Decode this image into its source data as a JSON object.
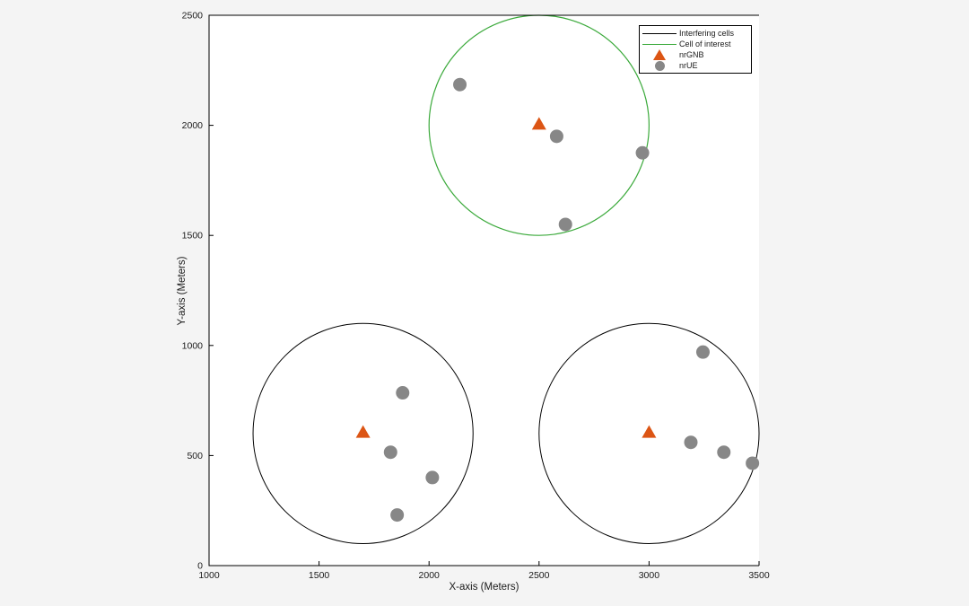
{
  "window": {
    "background_color": "#f4f4f4"
  },
  "chart_data": {
    "type": "scatter",
    "title": "",
    "xlabel": "X-axis (Meters)",
    "ylabel": "Y-axis (Meters)",
    "xlim": [
      1000,
      3500
    ],
    "ylim": [
      0,
      2500
    ],
    "xticks": [
      1000,
      1500,
      2000,
      2500,
      3000,
      3500
    ],
    "yticks": [
      0,
      500,
      1000,
      1500,
      2000,
      2500
    ],
    "grid": false,
    "plot_background": "#ffffff",
    "axis_color": "#000000",
    "tick_label_color": "#1a1a1a",
    "cells": [
      {
        "kind": "interfering",
        "center_x": 1700,
        "center_y": 600,
        "radius": 500,
        "color": "#000000",
        "line_width": 1
      },
      {
        "kind": "interfering",
        "center_x": 3000,
        "center_y": 600,
        "radius": 500,
        "color": "#000000",
        "line_width": 1
      },
      {
        "kind": "cell-of-interest",
        "center_x": 2500,
        "center_y": 2000,
        "radius": 500,
        "color": "#3caa3c",
        "line_width": 1.2
      }
    ],
    "series": [
      {
        "name": "nrGNB",
        "marker": "triangle",
        "color": "#dc5514",
        "points": [
          [
            1700,
            605
          ],
          [
            3000,
            605
          ],
          [
            2500,
            2005
          ]
        ]
      },
      {
        "name": "nrUE",
        "marker": "circle",
        "color": "#878787",
        "points": [
          [
            2140,
            2185
          ],
          [
            2580,
            1950
          ],
          [
            2970,
            1875
          ],
          [
            2620,
            1550
          ],
          [
            1880,
            785
          ],
          [
            1825,
            515
          ],
          [
            2015,
            400
          ],
          [
            1855,
            230
          ],
          [
            3245,
            970
          ],
          [
            3190,
            560
          ],
          [
            3340,
            515
          ],
          [
            3470,
            465
          ]
        ]
      }
    ],
    "legend": {
      "position": "top-right",
      "entries": [
        {
          "label": "Interfering cells",
          "swatch": "line",
          "color": "#000000"
        },
        {
          "label": "Cell of interest",
          "swatch": "line",
          "color": "#3caa3c"
        },
        {
          "label": "nrGNB",
          "swatch": "triangle",
          "color": "#dc5514"
        },
        {
          "label": "nrUE",
          "swatch": "circle",
          "color": "#878787"
        }
      ]
    }
  }
}
